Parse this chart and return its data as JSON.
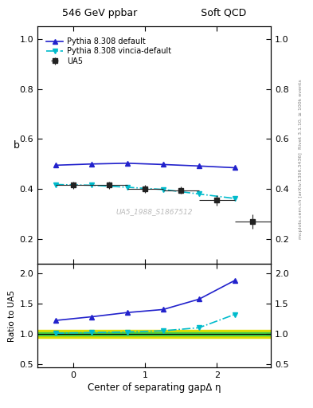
{
  "title_left": "546 GeV ppbar",
  "title_right": "Soft QCD",
  "ylabel_main": "b",
  "ylabel_ratio": "Ratio to UA5",
  "xlabel": "Center of separating gapΔ η",
  "right_label_top": "Rivet 3.1.10, ≥ 100k events",
  "right_label_bottom": "mcplots.cern.ch [arXiv:1306.3436]",
  "watermark": "UA5_1988_S1867512",
  "ua5_x": [
    0.0,
    0.5,
    1.0,
    1.5,
    2.0,
    2.5
  ],
  "ua5_y": [
    0.415,
    0.415,
    0.4,
    0.395,
    0.355,
    0.27
  ],
  "ua5_xerr": [
    0.25,
    0.25,
    0.25,
    0.25,
    0.25,
    0.25
  ],
  "ua5_yerr": [
    0.015,
    0.015,
    0.015,
    0.015,
    0.02,
    0.03
  ],
  "pythia_default_x": [
    -0.25,
    0.25,
    0.75,
    1.25,
    1.75,
    2.25
  ],
  "pythia_default_y": [
    0.495,
    0.5,
    0.503,
    0.498,
    0.492,
    0.485
  ],
  "pythia_vincia_x": [
    -0.25,
    0.25,
    0.75,
    1.25,
    1.75,
    2.25
  ],
  "pythia_vincia_y": [
    0.418,
    0.415,
    0.407,
    0.398,
    0.38,
    0.362
  ],
  "ratio_pythia_default_x": [
    -0.25,
    0.25,
    0.75,
    1.25,
    1.75,
    2.25
  ],
  "ratio_pythia_default_y": [
    1.22,
    1.28,
    1.35,
    1.4,
    1.57,
    1.88
  ],
  "ratio_pythia_vincia_x": [
    -0.25,
    0.25,
    0.75,
    1.25,
    1.75,
    2.25
  ],
  "ratio_pythia_vincia_y": [
    1.01,
    1.02,
    1.03,
    1.05,
    1.1,
    1.32
  ],
  "ratio_band_green_low": 0.97,
  "ratio_band_green_high": 1.03,
  "ratio_band_yellow_low": 0.93,
  "ratio_band_yellow_high": 1.07,
  "ua5_color": "#222222",
  "pythia_default_color": "#2222cc",
  "pythia_vincia_color": "#00bbcc",
  "band_green_color": "#44cc44",
  "band_yellow_color": "#dddd00",
  "xlim": [
    -0.5,
    2.75
  ],
  "ylim_main": [
    0.1,
    1.05
  ],
  "ylim_ratio": [
    0.45,
    2.15
  ],
  "yticks_main": [
    0.2,
    0.4,
    0.6,
    0.8,
    1.0
  ],
  "yticks_ratio": [
    0.5,
    1.0,
    1.5,
    2.0
  ],
  "xticks": [
    0,
    1,
    2
  ]
}
